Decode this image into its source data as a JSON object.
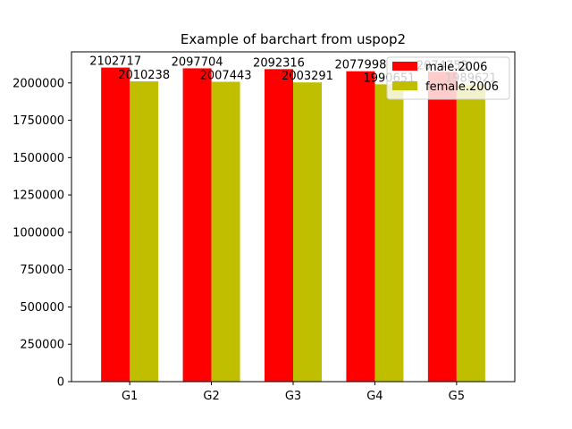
{
  "chart_data": {
    "type": "bar",
    "title": "Example of barchart from uspop2",
    "xlabel": "",
    "ylabel": "",
    "categories": [
      "G1",
      "G2",
      "G3",
      "G4",
      "G5"
    ],
    "series": [
      {
        "name": "male.2006",
        "color": "#ff0000",
        "values": [
          2102717,
          2097704,
          2092316,
          2077998,
          2074753
        ]
      },
      {
        "name": "female.2006",
        "color": "#bfbf00",
        "values": [
          2010238,
          2007443,
          2003291,
          1990651,
          1989621
        ]
      }
    ],
    "ylim": [
      0,
      2208000
    ],
    "yticks": [
      0,
      250000,
      500000,
      750000,
      1000000,
      1250000,
      1500000,
      1750000,
      2000000
    ],
    "grid": false,
    "legend_position": "top-right"
  }
}
